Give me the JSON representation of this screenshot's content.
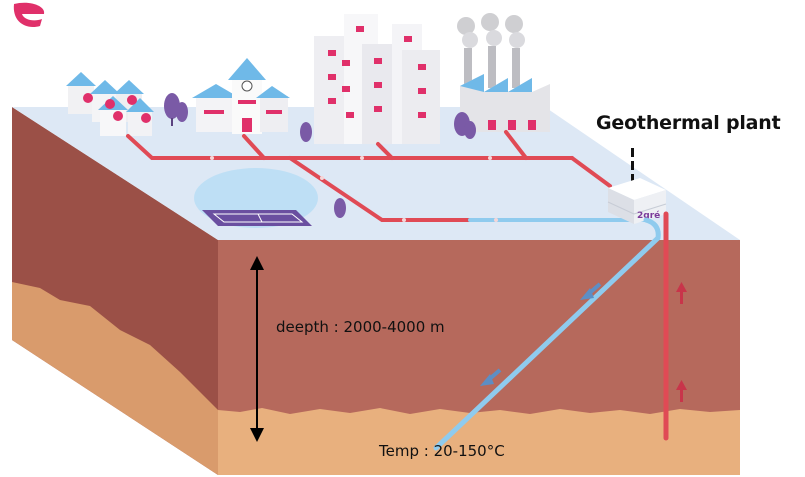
{
  "labels": {
    "plant_title": "Geothermal plant",
    "depth": "deepth : 2000-4000 m",
    "temperature": "Temp : 20-150°C",
    "plant_logo": "2gré"
  },
  "colors": {
    "surface": "#dde8f5",
    "soil_front": "#b6695c",
    "soil_side": "#9b5047",
    "rock": "#e8b07e",
    "rock_side": "#d99b6c",
    "hot_pipe": "#e04a55",
    "cold_pipe": "#8fcbee",
    "accent_pink": "#e0306a",
    "tree": "#7a5aa6"
  },
  "icons": {
    "depth_arrow": "double-arrow-vertical",
    "flow_down": "arrow-down-left",
    "flow_up": "arrow-up"
  }
}
